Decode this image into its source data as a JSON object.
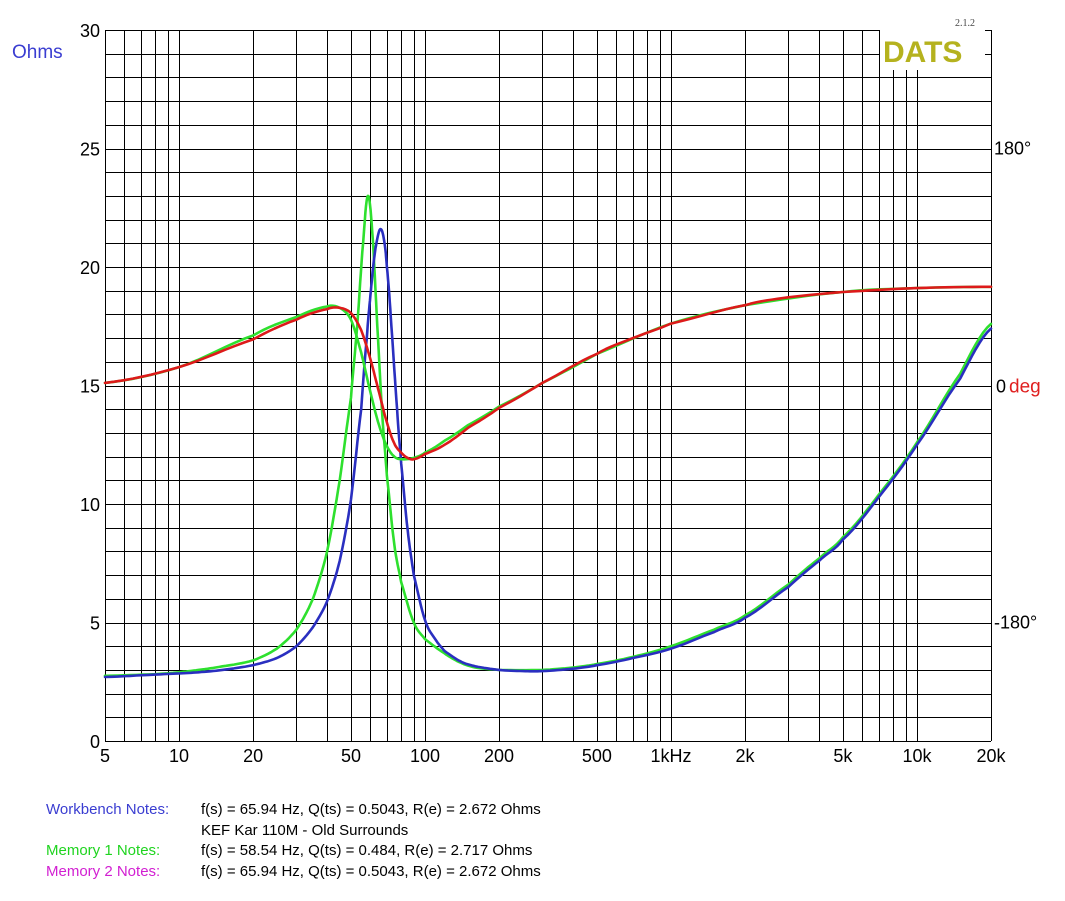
{
  "chart_data": {
    "type": "line",
    "x_scale": "log",
    "xlim": [
      5,
      20000
    ],
    "grid": true,
    "left_axis": {
      "label": "Ohms",
      "ylim": [
        0,
        30
      ],
      "ticks": [
        0,
        5,
        10,
        15,
        20,
        25,
        30
      ]
    },
    "right_axis": {
      "label_value": "0",
      "label_unit": "deg",
      "ylim": [
        -270,
        270
      ],
      "ticks": [
        {
          "value": 180,
          "label": "180°"
        },
        {
          "value": -180,
          "label": "-180°"
        }
      ]
    },
    "x_tick_labels": [
      {
        "value": 5,
        "label": "5"
      },
      {
        "value": 10,
        "label": "10"
      },
      {
        "value": 20,
        "label": "20"
      },
      {
        "value": 50,
        "label": "50"
      },
      {
        "value": 100,
        "label": "100"
      },
      {
        "value": 200,
        "label": "200"
      },
      {
        "value": 500,
        "label": "500"
      },
      {
        "value": 1000,
        "label": "1kHz"
      },
      {
        "value": 2000,
        "label": "2k"
      },
      {
        "value": 5000,
        "label": "5k"
      },
      {
        "value": 10000,
        "label": "10k"
      },
      {
        "value": 20000,
        "label": "20k"
      }
    ],
    "series": [
      {
        "axis": "left",
        "color": "#2a2fc0",
        "x": [
          5,
          8,
          10,
          12,
          15,
          20,
          25,
          30,
          35,
          40,
          45,
          50,
          55,
          58,
          60,
          62,
          64,
          65.94,
          68,
          70,
          73,
          77,
          80,
          85,
          90,
          100,
          110,
          120,
          140,
          160,
          200,
          250,
          300,
          400,
          500,
          700,
          1000,
          1500,
          2000,
          3000,
          4000,
          5000,
          7000,
          10000,
          15000,
          20000
        ],
        "y": [
          2.7,
          2.8,
          2.85,
          2.9,
          3.0,
          3.2,
          3.5,
          4.0,
          4.8,
          5.9,
          7.6,
          10.2,
          14.0,
          17.0,
          18.8,
          20.3,
          21.2,
          21.6,
          21.2,
          20.0,
          17.5,
          14.0,
          11.7,
          8.9,
          7.0,
          5.1,
          4.3,
          3.8,
          3.35,
          3.15,
          3.0,
          2.95,
          2.95,
          3.05,
          3.2,
          3.5,
          3.9,
          4.6,
          5.2,
          6.5,
          7.6,
          8.5,
          10.3,
          12.5,
          15.3,
          17.4
        ]
      },
      {
        "axis": "left",
        "color": "#2ee02e",
        "x": [
          5,
          8,
          10,
          12,
          15,
          20,
          25,
          30,
          35,
          40,
          45,
          50,
          53,
          56,
          58.54,
          61,
          64,
          67,
          70,
          75,
          80,
          90,
          100,
          120,
          140,
          160,
          200,
          300,
          400,
          500,
          700,
          1000,
          1500,
          2000,
          3000,
          4000,
          5000,
          7000,
          10000,
          15000,
          20000
        ],
        "y": [
          2.75,
          2.82,
          2.9,
          3.0,
          3.15,
          3.4,
          3.9,
          4.7,
          6.0,
          8.0,
          11.0,
          14.5,
          17.5,
          21.0,
          23.0,
          21.5,
          17.5,
          13.8,
          11.2,
          8.3,
          6.7,
          5.0,
          4.3,
          3.7,
          3.3,
          3.1,
          3.0,
          3.0,
          3.1,
          3.25,
          3.55,
          4.0,
          4.7,
          5.3,
          6.6,
          7.7,
          8.6,
          10.4,
          12.6,
          15.5,
          17.6
        ]
      },
      {
        "axis": "right",
        "color": "#dd1a1a",
        "x": [
          5,
          10,
          20,
          30,
          40,
          45,
          50,
          55,
          60,
          65,
          70,
          75,
          80,
          85,
          90,
          100,
          120,
          150,
          200,
          300,
          500,
          700,
          1000,
          2000,
          3000,
          5000,
          10000,
          20000
        ],
        "y": [
          2,
          14,
          35,
          50,
          58,
          59,
          55,
          42,
          20,
          -5,
          -28,
          -44,
          -51,
          -55,
          -56,
          -52,
          -45,
          -32,
          -17,
          2,
          24,
          36,
          47,
          61,
          67,
          71,
          74,
          75
        ]
      },
      {
        "axis": "right",
        "color": "#2ee02e",
        "x": [
          5,
          10,
          20,
          30,
          40,
          45,
          50,
          55,
          60,
          65,
          70,
          75,
          80,
          90,
          100,
          120,
          150,
          200,
          300,
          500,
          1000,
          2000,
          5000,
          10000,
          20000
        ],
        "y": [
          2,
          14,
          38,
          52,
          60,
          59,
          50,
          25,
          -5,
          -30,
          -46,
          -54,
          -56,
          -55,
          -51,
          -42,
          -30,
          -16,
          2,
          24,
          47,
          61,
          71,
          74,
          75
        ]
      }
    ],
    "brand": {
      "name": "DATS",
      "version": "2.1.2"
    },
    "notes": [
      {
        "label": "Workbench Notes:",
        "text": "f(s) = 65.94 Hz, Q(ts) = 0.5043, R(e) = 2.672 Ohms",
        "color": "#3a3dd1"
      },
      {
        "label": "",
        "text": "KEF Kar 110M - Old Surrounds",
        "color": "#000000"
      },
      {
        "label": "Memory 1 Notes:",
        "text": "f(s) = 58.54 Hz, Q(ts) = 0.484, R(e) = 2.717 Ohms",
        "color": "#1fd41f"
      },
      {
        "label": "Memory 2 Notes:",
        "text": "f(s) = 65.94 Hz, Q(ts) = 0.5043, R(e) = 2.672 Ohms",
        "color": "#d21fd2"
      }
    ],
    "colors": {
      "ohms_label": "#3a3dd1",
      "deg_label": "#e01f1f",
      "brand": "#b5b21e",
      "grid": "#000000"
    }
  }
}
